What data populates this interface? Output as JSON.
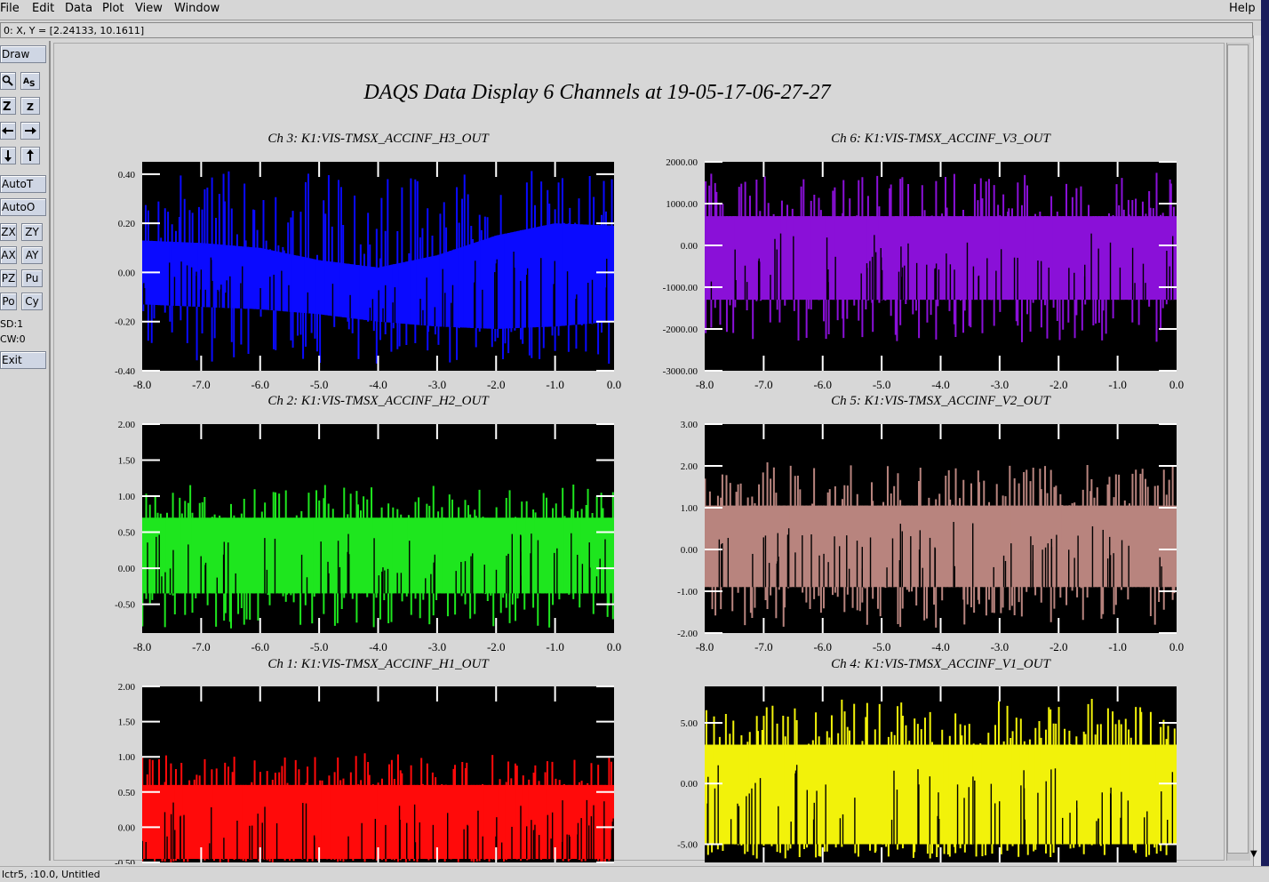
{
  "menubar": {
    "items": [
      "File",
      "Edit",
      "Data",
      "Plot",
      "View",
      "Window"
    ],
    "help": "Help"
  },
  "status": {
    "readout": "0: X, Y = [2.24133, 10.1611]"
  },
  "toolbar": {
    "draw": "Draw",
    "icon_rows": [
      [
        "magnify-icon",
        "auto-scale-icon"
      ],
      [
        "zoom-out-icon",
        "zoom-in-icon"
      ],
      [
        "arrow-left-icon",
        "arrow-right-icon"
      ],
      [
        "arrow-down-icon",
        "arrow-up-icon"
      ]
    ],
    "autot": "AutoT",
    "autoo": "AutoO",
    "pairs": [
      [
        "ZX",
        "ZY"
      ],
      [
        "AX",
        "AY"
      ],
      [
        "PZ",
        "Pu"
      ],
      [
        "Po",
        "Cy"
      ]
    ],
    "sd": "SD:1",
    "cw": "CW:0",
    "exit": "Exit"
  },
  "canvas": {
    "title": "DAQS Data Display 6 Channels at 19-05-17-06-27-27"
  },
  "bottom": {
    "text": "lctr5, :10.0, Untitled"
  },
  "chart_data": [
    {
      "type": "line",
      "title": "Ch 3:  K1:VIS-TMSX_ACCINF_H3_OUT",
      "color": "#0a0aff",
      "xlim": [
        -8.0,
        0.0
      ],
      "ylim": [
        -0.4,
        0.45
      ],
      "xticks": [
        "-8.0",
        "-7.0",
        "-6.0",
        "-5.0",
        "-4.0",
        "-3.0",
        "-2.0",
        "-1.0",
        "0.0"
      ],
      "yticks": [
        {
          "v": 0.4,
          "t": "0.40"
        },
        {
          "v": 0.2,
          "t": "0.20"
        },
        {
          "v": 0.0,
          "t": "0.00"
        },
        {
          "v": -0.2,
          "t": "-0.20"
        },
        {
          "v": -0.4,
          "t": "-0.40"
        }
      ],
      "band_lo": [
        -0.13,
        -0.14,
        -0.15,
        -0.17,
        -0.2,
        -0.22,
        -0.23,
        -0.22,
        -0.2
      ],
      "band_hi": [
        0.13,
        0.12,
        0.1,
        0.05,
        0.02,
        0.07,
        0.15,
        0.2,
        0.19
      ],
      "spike_hi": 0.43,
      "spike_lo": -0.38
    },
    {
      "type": "line",
      "title": "Ch 6:  K1:VIS-TMSX_ACCINF_V3_OUT",
      "color": "#8a10d8",
      "xlim": [
        -8.0,
        0.0
      ],
      "ylim": [
        -3000,
        2000
      ],
      "xticks": [
        "-8.0",
        "-7.0",
        "-6.0",
        "-5.0",
        "-4.0",
        "-3.0",
        "-2.0",
        "-1.0",
        "0.0"
      ],
      "yticks": [
        {
          "v": 2000,
          "t": "2000.00"
        },
        {
          "v": 1000,
          "t": "1000.00"
        },
        {
          "v": 0,
          "t": "0.00"
        },
        {
          "v": -1000,
          "t": "-1000.00"
        },
        {
          "v": -2000,
          "t": "-2000.00"
        },
        {
          "v": -3000,
          "t": "-3000.00"
        }
      ],
      "band_lo": [
        -1300,
        -1300,
        -1300,
        -1300,
        -1300,
        -1300,
        -1300,
        -1300,
        -1300
      ],
      "band_hi": [
        700,
        700,
        700,
        700,
        700,
        700,
        700,
        700,
        700
      ],
      "spike_hi": 1750,
      "spike_lo": -2350
    },
    {
      "type": "line",
      "title": "Ch 2:  K1:VIS-TMSX_ACCINF_H2_OUT",
      "color": "#1ee61e",
      "xlim": [
        -8.0,
        0.0
      ],
      "ylim": [
        -0.9,
        2.0
      ],
      "xticks": [
        "-8.0",
        "-7.0",
        "-6.0",
        "-5.0",
        "-4.0",
        "-3.0",
        "-2.0",
        "-1.0",
        "0.0"
      ],
      "yticks": [
        {
          "v": 2.0,
          "t": "2.00"
        },
        {
          "v": 1.5,
          "t": "1.50"
        },
        {
          "v": 1.0,
          "t": "1.00"
        },
        {
          "v": 0.5,
          "t": "0.50"
        },
        {
          "v": 0.0,
          "t": "0.00"
        },
        {
          "v": -0.5,
          "t": "-0.50"
        }
      ],
      "band_lo": [
        -0.35,
        -0.35,
        -0.35,
        -0.35,
        -0.35,
        -0.35,
        -0.35,
        -0.35,
        -0.35
      ],
      "band_hi": [
        0.7,
        0.7,
        0.7,
        0.7,
        0.7,
        0.7,
        0.7,
        0.7,
        0.7
      ],
      "spike_hi": 1.18,
      "spike_lo": -0.85
    },
    {
      "type": "line",
      "title": "Ch 5:  K1:VIS-TMSX_ACCINF_V2_OUT",
      "color": "#b8847e",
      "xlim": [
        -8.0,
        0.0
      ],
      "ylim": [
        -2.0,
        3.0
      ],
      "xticks": [
        "-8.0",
        "-7.0",
        "-6.0",
        "-5.0",
        "-4.0",
        "-3.0",
        "-2.0",
        "-1.0",
        "0.0"
      ],
      "yticks": [
        {
          "v": 3.0,
          "t": "3.00"
        },
        {
          "v": 2.0,
          "t": "2.00"
        },
        {
          "v": 1.0,
          "t": "1.00"
        },
        {
          "v": 0.0,
          "t": "0.00"
        },
        {
          "v": -1.0,
          "t": "-1.00"
        },
        {
          "v": -2.0,
          "t": "-2.00"
        }
      ],
      "band_lo": [
        -0.9,
        -0.9,
        -0.9,
        -0.9,
        -0.9,
        -0.9,
        -0.9,
        -0.9,
        -0.9
      ],
      "band_hi": [
        1.05,
        1.05,
        1.05,
        1.05,
        1.05,
        1.05,
        1.05,
        1.05,
        1.05
      ],
      "spike_hi": 2.1,
      "spike_lo": -1.9
    },
    {
      "type": "line",
      "title": "Ch 1:  K1:VIS-TMSX_ACCINF_H1_OUT",
      "color": "#ff0a0a",
      "xlim": [
        -8.0,
        0.0
      ],
      "ylim": [
        -0.5,
        2.0
      ],
      "xticks": [],
      "yticks": [
        {
          "v": 2.0,
          "t": "2.00"
        },
        {
          "v": 1.5,
          "t": "1.50"
        },
        {
          "v": 1.0,
          "t": "1.00"
        },
        {
          "v": 0.5,
          "t": "0.50"
        },
        {
          "v": 0.0,
          "t": "0.00"
        },
        {
          "v": -0.5,
          "t": "-0.50"
        }
      ],
      "band_lo": [
        -0.45,
        -0.45,
        -0.45,
        -0.45,
        -0.45,
        -0.45,
        -0.45,
        -0.45,
        -0.45
      ],
      "band_hi": [
        0.6,
        0.6,
        0.6,
        0.6,
        0.6,
        0.6,
        0.6,
        0.6,
        0.6
      ],
      "spike_hi": 1.05,
      "spike_lo": -0.5
    },
    {
      "type": "line",
      "title": "Ch 4:  K1:VIS-TMSX_ACCINF_V1_OUT",
      "color": "#f2f20a",
      "xlim": [
        -8.0,
        0.0
      ],
      "ylim": [
        -6.5,
        8.0
      ],
      "xticks": [],
      "yticks": [
        {
          "v": 5.0,
          "t": "5.00"
        },
        {
          "v": 0.0,
          "t": "0.00"
        },
        {
          "v": -5.0,
          "t": "-5.00"
        }
      ],
      "band_lo": [
        -5.0,
        -5.0,
        -5.0,
        -5.0,
        -5.0,
        -5.0,
        -5.0,
        -5.0,
        -5.0
      ],
      "band_hi": [
        3.2,
        3.2,
        3.2,
        3.2,
        3.2,
        3.2,
        3.2,
        3.2,
        3.2
      ],
      "spike_hi": 7.0,
      "spike_lo": -6.2
    }
  ]
}
